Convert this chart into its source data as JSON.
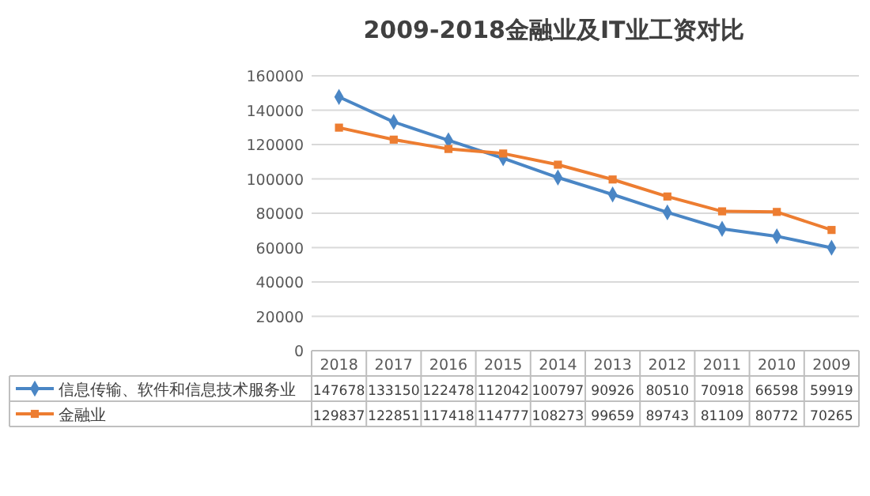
{
  "chart_data": {
    "type": "line",
    "title": "2009-2018金融业及IT业工资对比",
    "categories": [
      "2018",
      "2017",
      "2016",
      "2015",
      "2014",
      "2013",
      "2012",
      "2011",
      "2010",
      "2009"
    ],
    "series": [
      {
        "name": "信息传输、软件和信息技术服务业",
        "color": "#4a86c5",
        "marker": "diamond",
        "values": [
          147678,
          133150,
          122478,
          112042,
          100797,
          90926,
          80510,
          70918,
          66598,
          59919
        ]
      },
      {
        "name": "金融业",
        "color": "#ed7d31",
        "marker": "square",
        "values": [
          129837,
          122851,
          117418,
          114777,
          108273,
          99659,
          89743,
          81109,
          80772,
          70265
        ]
      }
    ],
    "ylim": [
      0,
      160000
    ],
    "yticks": [
      0,
      20000,
      40000,
      60000,
      80000,
      100000,
      120000,
      140000,
      160000
    ],
    "grid": "y",
    "legend": "bottom",
    "data_labels": true,
    "line_style": "solid"
  }
}
